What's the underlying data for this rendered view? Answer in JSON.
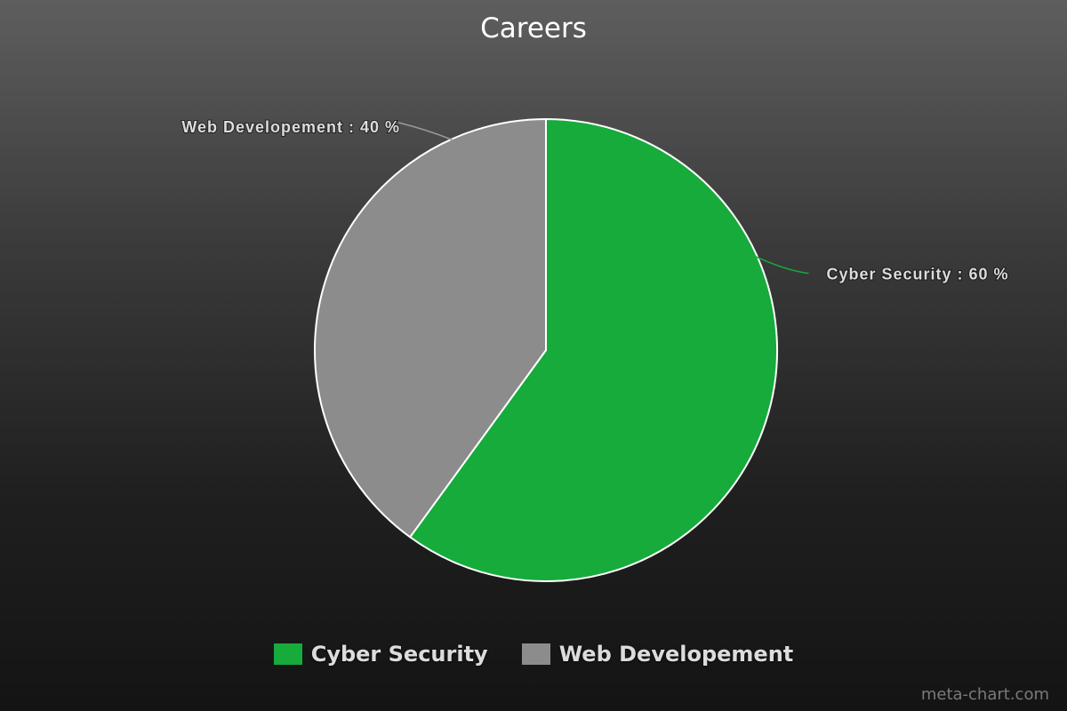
{
  "chart_data": {
    "type": "pie",
    "title": "Careers",
    "slices": [
      {
        "label": "Cyber Security",
        "value": 60,
        "color": "#16ab3b",
        "data_label": "Cyber Security : 60 %",
        "label_side": "right"
      },
      {
        "label": "Web Developement",
        "value": 40,
        "color": "#8c8c8c",
        "data_label": "Web Developement : 40 %",
        "label_side": "left"
      }
    ],
    "start_angle_deg": 0,
    "direction": "clockwise",
    "legend_position": "bottom-center",
    "slice_border_color": "#ffffff"
  },
  "watermark": "meta-chart.com"
}
